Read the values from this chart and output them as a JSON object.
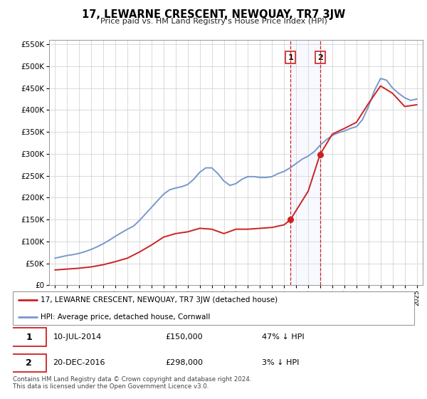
{
  "title": "17, LEWARNE CRESCENT, NEWQUAY, TR7 3JW",
  "subtitle": "Price paid vs. HM Land Registry's House Price Index (HPI)",
  "hpi_color": "#7799cc",
  "house_color": "#cc2222",
  "marker_color": "#cc2222",
  "shade_color": "#ddddff",
  "legend_label_house": "17, LEWARNE CRESCENT, NEWQUAY, TR7 3JW (detached house)",
  "legend_label_hpi": "HPI: Average price, detached house, Cornwall",
  "transaction1_date": 2014.53,
  "transaction1_price": 150000,
  "transaction1_label": "1",
  "transaction1_display": "10-JUL-2014",
  "transaction1_price_display": "£150,000",
  "transaction1_note": "47% ↓ HPI",
  "transaction2_date": 2016.97,
  "transaction2_price": 298000,
  "transaction2_label": "2",
  "transaction2_display": "20-DEC-2016",
  "transaction2_price_display": "£298,000",
  "transaction2_note": "3% ↓ HPI",
  "ylim": [
    0,
    560000
  ],
  "xlim": [
    1994.5,
    2025.5
  ],
  "footnote": "Contains HM Land Registry data © Crown copyright and database right 2024.\nThis data is licensed under the Open Government Licence v3.0.",
  "hpi_years": [
    1995.0,
    1995.5,
    1996.0,
    1996.5,
    1997.0,
    1997.5,
    1998.0,
    1998.5,
    1999.0,
    1999.5,
    2000.0,
    2000.5,
    2001.0,
    2001.5,
    2002.0,
    2002.5,
    2003.0,
    2003.5,
    2004.0,
    2004.5,
    2005.0,
    2005.5,
    2006.0,
    2006.5,
    2007.0,
    2007.5,
    2008.0,
    2008.5,
    2009.0,
    2009.5,
    2010.0,
    2010.5,
    2011.0,
    2011.5,
    2012.0,
    2012.5,
    2013.0,
    2013.5,
    2014.0,
    2014.5,
    2015.0,
    2015.5,
    2016.0,
    2016.5,
    2017.0,
    2017.5,
    2018.0,
    2018.5,
    2019.0,
    2019.5,
    2020.0,
    2020.5,
    2021.0,
    2021.5,
    2022.0,
    2022.5,
    2023.0,
    2023.5,
    2024.0,
    2024.5,
    2025.0
  ],
  "hpi_values": [
    62000,
    65000,
    68000,
    70000,
    73000,
    77000,
    82000,
    88000,
    95000,
    103000,
    112000,
    120000,
    128000,
    135000,
    148000,
    163000,
    178000,
    193000,
    208000,
    218000,
    222000,
    225000,
    230000,
    242000,
    258000,
    268000,
    268000,
    255000,
    238000,
    228000,
    232000,
    242000,
    248000,
    248000,
    246000,
    246000,
    248000,
    255000,
    260000,
    268000,
    278000,
    288000,
    295000,
    305000,
    320000,
    332000,
    342000,
    348000,
    352000,
    358000,
    362000,
    378000,
    408000,
    445000,
    472000,
    468000,
    450000,
    438000,
    428000,
    422000,
    425000
  ],
  "house_years": [
    1995.0,
    1996.0,
    1997.0,
    1998.0,
    1999.0,
    2000.0,
    2001.0,
    2002.0,
    2003.0,
    2004.0,
    2005.0,
    2006.0,
    2007.0,
    2008.0,
    2009.0,
    2010.0,
    2011.0,
    2012.0,
    2013.0,
    2014.0,
    2014.53,
    2016.0,
    2016.97,
    2018.0,
    2019.0,
    2020.0,
    2021.0,
    2022.0,
    2023.0,
    2024.0,
    2025.0
  ],
  "house_values": [
    35000,
    37000,
    39000,
    42000,
    47000,
    54000,
    62000,
    76000,
    92000,
    110000,
    118000,
    122000,
    130000,
    128000,
    118000,
    128000,
    128000,
    130000,
    132000,
    138000,
    150000,
    215000,
    298000,
    345000,
    358000,
    372000,
    415000,
    455000,
    438000,
    408000,
    412000
  ]
}
